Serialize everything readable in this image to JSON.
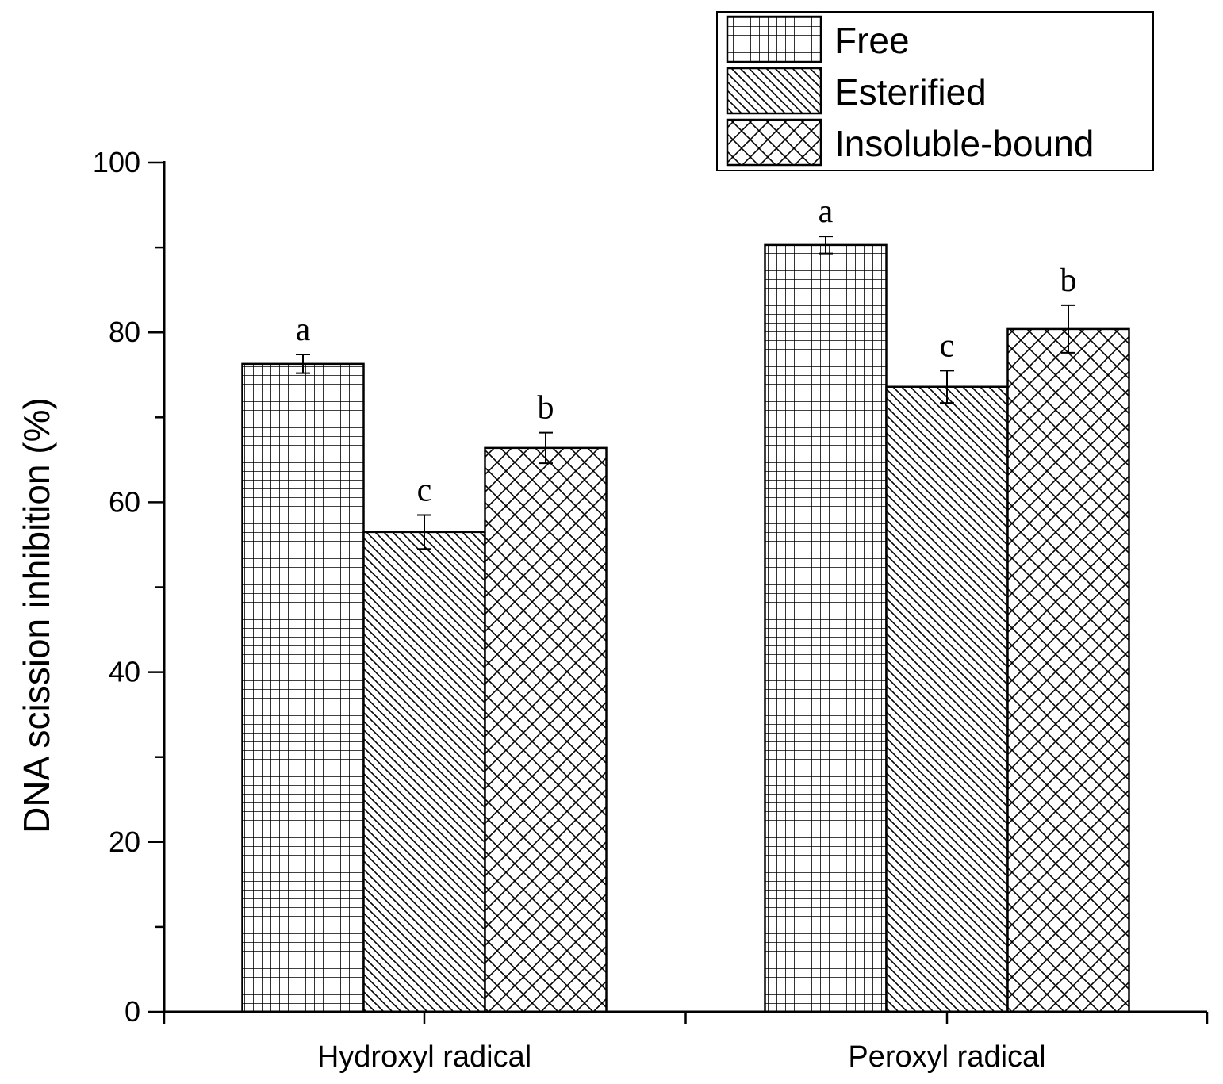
{
  "chart_data": {
    "type": "bar",
    "title": "",
    "xlabel": "",
    "ylabel": "DNA scission inhibition (%)",
    "ylim": [
      0,
      100
    ],
    "yticks": [
      0,
      20,
      40,
      60,
      80,
      100
    ],
    "grid": false,
    "legend_position": "top-right",
    "categories": [
      "Hydroxyl radical",
      "Peroxyl radical"
    ],
    "series": [
      {
        "name": "Free",
        "pattern": "grid",
        "values": [
          76.3,
          90.3
        ],
        "errors": [
          1.1,
          1.0
        ],
        "letters": [
          "a",
          "a"
        ]
      },
      {
        "name": "Esterified",
        "pattern": "diagonal",
        "values": [
          56.5,
          73.6
        ],
        "errors": [
          2.0,
          1.9
        ],
        "letters": [
          "c",
          "c"
        ]
      },
      {
        "name": "Insoluble-bound",
        "pattern": "crosshatch",
        "values": [
          66.4,
          80.4
        ],
        "errors": [
          1.8,
          2.8
        ],
        "letters": [
          "b",
          "b"
        ]
      }
    ]
  }
}
